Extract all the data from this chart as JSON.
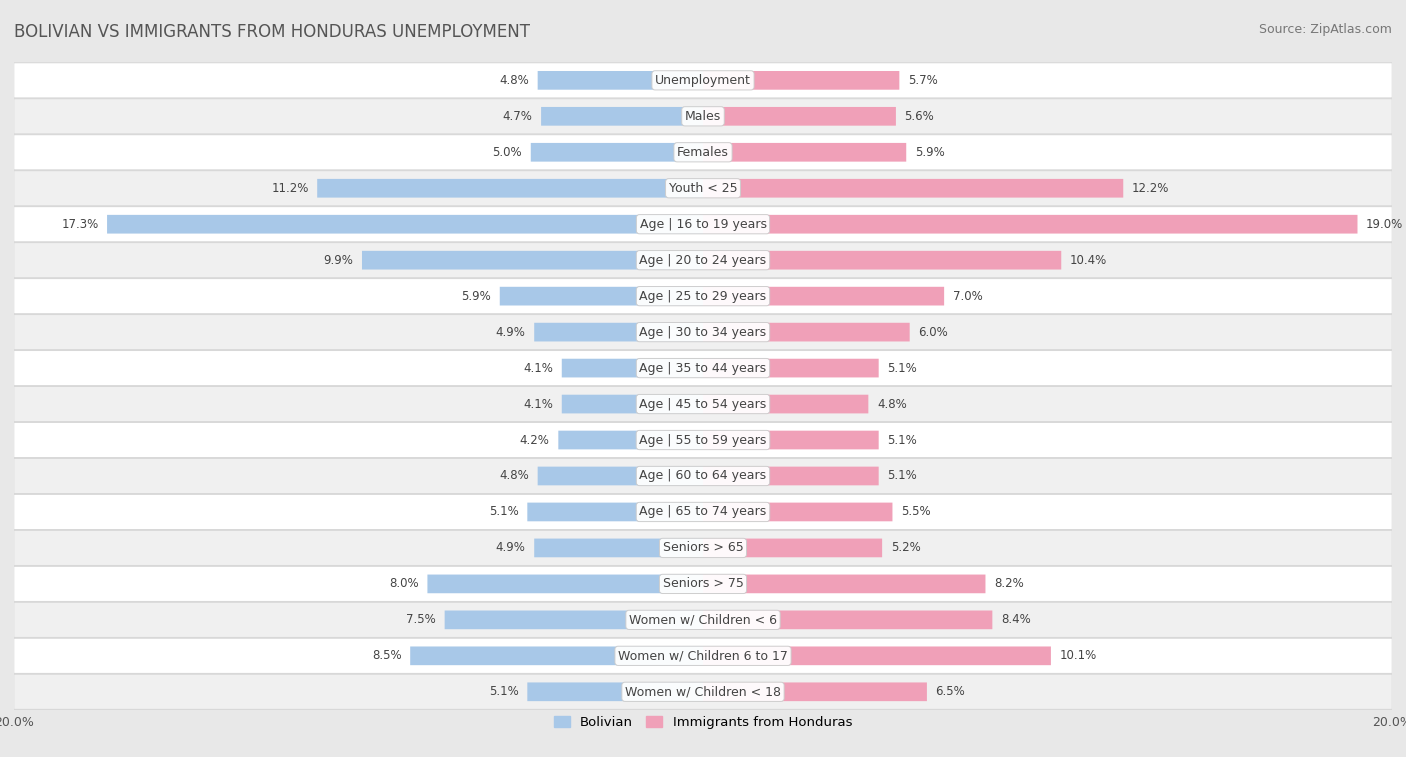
{
  "title": "BOLIVIAN VS IMMIGRANTS FROM HONDURAS UNEMPLOYMENT",
  "source": "Source: ZipAtlas.com",
  "categories": [
    "Unemployment",
    "Males",
    "Females",
    "Youth < 25",
    "Age | 16 to 19 years",
    "Age | 20 to 24 years",
    "Age | 25 to 29 years",
    "Age | 30 to 34 years",
    "Age | 35 to 44 years",
    "Age | 45 to 54 years",
    "Age | 55 to 59 years",
    "Age | 60 to 64 years",
    "Age | 65 to 74 years",
    "Seniors > 65",
    "Seniors > 75",
    "Women w/ Children < 6",
    "Women w/ Children 6 to 17",
    "Women w/ Children < 18"
  ],
  "bolivian": [
    4.8,
    4.7,
    5.0,
    11.2,
    17.3,
    9.9,
    5.9,
    4.9,
    4.1,
    4.1,
    4.2,
    4.8,
    5.1,
    4.9,
    8.0,
    7.5,
    8.5,
    5.1
  ],
  "honduras": [
    5.7,
    5.6,
    5.9,
    12.2,
    19.0,
    10.4,
    7.0,
    6.0,
    5.1,
    4.8,
    5.1,
    5.1,
    5.5,
    5.2,
    8.2,
    8.4,
    10.1,
    6.5
  ],
  "bolivian_color": "#a8c8e8",
  "honduras_color": "#f0a0b8",
  "row_color_even": "#f5f5f5",
  "row_color_odd": "#e8e8e8",
  "row_border_color": "#d0d0d0",
  "background_color": "#e8e8e8",
  "axis_max": 20.0,
  "legend_bolivian": "Bolivian",
  "legend_honduras": "Immigrants from Honduras",
  "title_fontsize": 12,
  "source_fontsize": 9,
  "label_fontsize": 9,
  "value_fontsize": 8.5,
  "axis_label_fontsize": 9
}
